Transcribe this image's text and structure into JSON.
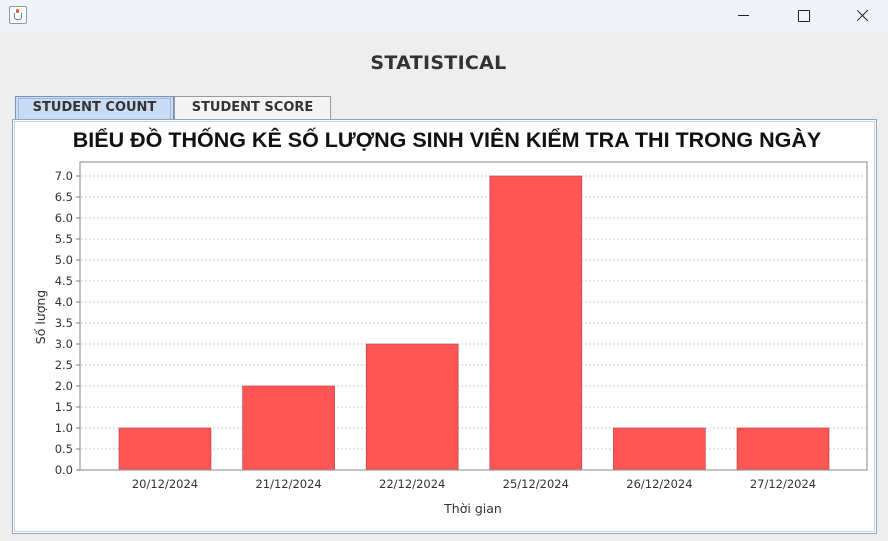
{
  "window": {
    "title": ""
  },
  "page": {
    "heading": "STATISTICAL"
  },
  "tabs": [
    {
      "label": "STUDENT COUNT",
      "active": true
    },
    {
      "label": "STUDENT SCORE",
      "active": false
    }
  ],
  "chart_data": {
    "type": "bar",
    "title": "BIỂU ĐỒ THỐNG KÊ SỐ LƯỢNG SINH VIÊN KIỂM TRA THI TRONG NGÀY",
    "xlabel": "Thời gian",
    "ylabel": "Số lượng",
    "categories": [
      "20/12/2024",
      "21/12/2024",
      "22/12/2024",
      "25/12/2024",
      "26/12/2024",
      "27/12/2024"
    ],
    "values": [
      1,
      2,
      3,
      7,
      1,
      1
    ],
    "ylim": [
      0,
      7.0
    ],
    "yticks": [
      "0.0",
      "0.5",
      "1.0",
      "1.5",
      "2.0",
      "2.5",
      "3.0",
      "3.5",
      "4.0",
      "4.5",
      "5.0",
      "5.5",
      "6.0",
      "6.5",
      "7.0"
    ],
    "bar_color": "#ff5555",
    "grid": true,
    "legend": "none"
  }
}
